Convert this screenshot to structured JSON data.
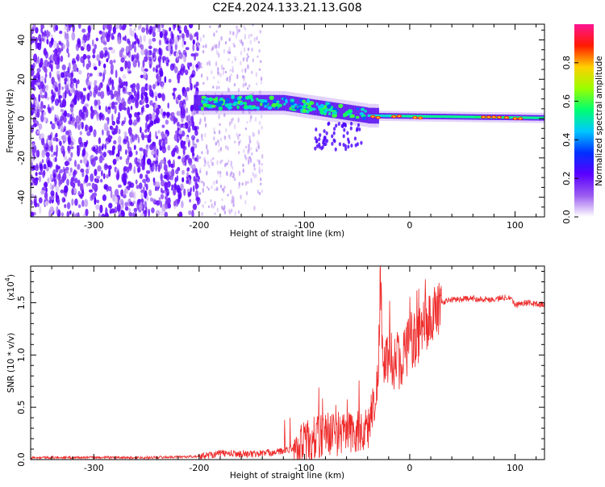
{
  "title": "C2E4.2024.133.21.13.G08",
  "chart_data": [
    {
      "type": "heatmap",
      "name": "spectrogram",
      "xlabel": "Height of straight line (km)",
      "ylabel": "Frequency (Hz)",
      "xlim": [
        -360,
        128
      ],
      "ylim": [
        -50,
        48
      ],
      "xticks": [
        -300,
        -200,
        -100,
        0,
        100
      ],
      "yticks": [
        -40,
        -20,
        0,
        20,
        40
      ],
      "colorbar": {
        "label": "Normalized spectral amplitude",
        "range": [
          0,
          1
        ],
        "ticks": [
          "0.0",
          "0.2",
          "0.4",
          "0.6",
          "0.8"
        ],
        "tick_values": [
          0.0,
          0.2,
          0.4,
          0.6,
          0.8
        ],
        "colors": [
          "#ffffff",
          "#9b5cf0",
          "#5a00ff",
          "#0030ff",
          "#00c8ff",
          "#00ff70",
          "#9aff00",
          "#ffd000",
          "#ff1a00",
          "#ff1493"
        ]
      },
      "grid": false
    },
    {
      "type": "line",
      "name": "snr",
      "xlabel": "Height of straight line (km)",
      "ylabel": "SNR (10 * v/v)",
      "scale_label": "(x10",
      "scale_exp": "4",
      "scale_close": ")",
      "xlim": [
        -360,
        128
      ],
      "ylim": [
        0,
        1.85
      ],
      "xticks": [
        -300,
        -200,
        -100,
        0,
        100
      ],
      "yticks": [
        "0.0",
        "0.5",
        "1.0",
        "1.5"
      ],
      "ytick_values": [
        0.0,
        0.5,
        1.0,
        1.5
      ],
      "color": "#ee2a2a",
      "series": [
        {
          "x": [
            -360,
            -300,
            -250,
            -200,
            -180,
            -150,
            -120,
            -100,
            -80,
            -60,
            -40,
            -30,
            -28,
            -25,
            -20,
            -10,
            0,
            10,
            20,
            30,
            40,
            60,
            80,
            90,
            95,
            100,
            110,
            128
          ],
          "y": [
            0.02,
            0.02,
            0.02,
            0.03,
            0.06,
            0.05,
            0.08,
            0.15,
            0.25,
            0.25,
            0.28,
            0.75,
            1.8,
            0.8,
            0.95,
            0.95,
            1.1,
            1.2,
            1.35,
            1.5,
            1.53,
            1.54,
            1.53,
            1.55,
            1.56,
            1.48,
            1.5,
            1.48
          ]
        }
      ]
    }
  ]
}
